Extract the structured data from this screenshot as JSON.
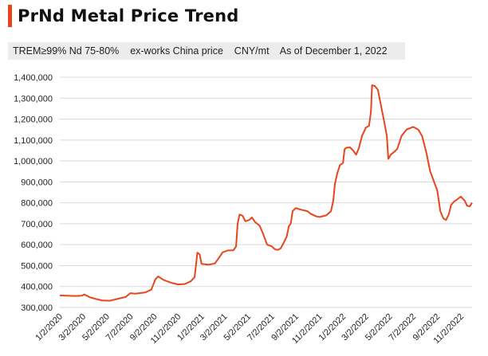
{
  "title": "PrNd Metal Price Trend",
  "subtitle": "TREM≥99% Nd 75-80%    ex-works China price    CNY/mt    As of December 1, 2022",
  "colors": {
    "accent": "#e8451e",
    "line": "#e8451e",
    "grid": "#d9d9d9"
  },
  "chart_data": {
    "type": "line",
    "title": "PrNd Metal Price Trend",
    "ylabel": "",
    "xlabel": "",
    "ylim": [
      300000,
      1400000
    ],
    "grid": true,
    "yticks": [
      300000,
      400000,
      500000,
      600000,
      700000,
      800000,
      900000,
      1000000,
      1100000,
      1200000,
      1300000,
      1400000
    ],
    "ytick_labels": [
      "300,000",
      "400,000",
      "500,000",
      "600,000",
      "700,000",
      "800,000",
      "900,000",
      "1,000,000",
      "1,100,000",
      "1,200,000",
      "1,300,000",
      "1,400,000"
    ],
    "xtick_labels": [
      "1/2/2020",
      "3/2/2020",
      "5/2/2020",
      "7/2/2020",
      "9/2/2020",
      "11/2/2020",
      "1/2/2021",
      "3/2/2021",
      "5/2/2021",
      "7/2/2021",
      "9/2/2021",
      "11/2/2021",
      "1/2/2022",
      "3/2/2022",
      "5/2/2022",
      "7/2/2022",
      "9/2/2022",
      "11/2/2022"
    ],
    "series": [
      {
        "values": [
          [
            "2020-01-02",
            357000
          ],
          [
            "2020-02-10",
            355000
          ],
          [
            "2020-02-28",
            356000
          ],
          [
            "2020-03-05",
            362000
          ],
          [
            "2020-03-20",
            348000
          ],
          [
            "2020-04-05",
            340000
          ],
          [
            "2020-04-20",
            333000
          ],
          [
            "2020-05-10",
            332000
          ],
          [
            "2020-06-01",
            342000
          ],
          [
            "2020-06-20",
            350000
          ],
          [
            "2020-07-02",
            368000
          ],
          [
            "2020-07-15",
            366000
          ],
          [
            "2020-08-10",
            372000
          ],
          [
            "2020-08-25",
            385000
          ],
          [
            "2020-09-05",
            435000
          ],
          [
            "2020-09-12",
            448000
          ],
          [
            "2020-09-25",
            432000
          ],
          [
            "2020-10-15",
            418000
          ],
          [
            "2020-11-02",
            410000
          ],
          [
            "2020-11-20",
            412000
          ],
          [
            "2020-12-05",
            425000
          ],
          [
            "2020-12-15",
            445000
          ],
          [
            "2020-12-22",
            562000
          ],
          [
            "2020-12-28",
            553000
          ],
          [
            "2021-01-02",
            508000
          ],
          [
            "2021-01-20",
            504000
          ],
          [
            "2021-02-05",
            510000
          ],
          [
            "2021-02-15",
            535000
          ],
          [
            "2021-02-25",
            563000
          ],
          [
            "2021-03-10",
            572000
          ],
          [
            "2021-03-25",
            573000
          ],
          [
            "2021-04-01",
            592000
          ],
          [
            "2021-04-05",
            700000
          ],
          [
            "2021-04-10",
            744000
          ],
          [
            "2021-04-18",
            738000
          ],
          [
            "2021-04-25",
            712000
          ],
          [
            "2021-05-05",
            718000
          ],
          [
            "2021-05-12",
            730000
          ],
          [
            "2021-05-20",
            708000
          ],
          [
            "2021-06-01",
            690000
          ],
          [
            "2021-06-10",
            650000
          ],
          [
            "2021-06-20",
            600000
          ],
          [
            "2021-07-02",
            592000
          ],
          [
            "2021-07-10",
            578000
          ],
          [
            "2021-07-18",
            575000
          ],
          [
            "2021-07-25",
            582000
          ],
          [
            "2021-08-02",
            610000
          ],
          [
            "2021-08-10",
            640000
          ],
          [
            "2021-08-15",
            688000
          ],
          [
            "2021-08-20",
            700000
          ],
          [
            "2021-08-25",
            760000
          ],
          [
            "2021-09-02",
            775000
          ],
          [
            "2021-09-10",
            770000
          ],
          [
            "2021-09-20",
            765000
          ],
          [
            "2021-10-02",
            760000
          ],
          [
            "2021-10-10",
            748000
          ],
          [
            "2021-10-25",
            735000
          ],
          [
            "2021-11-02",
            732000
          ],
          [
            "2021-11-20",
            740000
          ],
          [
            "2021-12-02",
            760000
          ],
          [
            "2021-12-08",
            810000
          ],
          [
            "2021-12-12",
            890000
          ],
          [
            "2021-12-18",
            940000
          ],
          [
            "2021-12-25",
            980000
          ],
          [
            "2022-01-02",
            990000
          ],
          [
            "2022-01-06",
            1055000
          ],
          [
            "2022-01-10",
            1063000
          ],
          [
            "2022-01-20",
            1065000
          ],
          [
            "2022-01-28",
            1050000
          ],
          [
            "2022-02-05",
            1030000
          ],
          [
            "2022-02-12",
            1062000
          ],
          [
            "2022-02-20",
            1120000
          ],
          [
            "2022-03-02",
            1160000
          ],
          [
            "2022-03-10",
            1168000
          ],
          [
            "2022-03-15",
            1235000
          ],
          [
            "2022-03-18",
            1362000
          ],
          [
            "2022-03-25",
            1358000
          ],
          [
            "2022-04-02",
            1340000
          ],
          [
            "2022-04-10",
            1265000
          ],
          [
            "2022-04-18",
            1190000
          ],
          [
            "2022-04-25",
            1120000
          ],
          [
            "2022-04-29",
            1010000
          ],
          [
            "2022-05-05",
            1030000
          ],
          [
            "2022-05-15",
            1045000
          ],
          [
            "2022-05-22",
            1058000
          ],
          [
            "2022-06-02",
            1120000
          ],
          [
            "2022-06-15",
            1150000
          ],
          [
            "2022-07-02",
            1163000
          ],
          [
            "2022-07-15",
            1150000
          ],
          [
            "2022-07-25",
            1120000
          ],
          [
            "2022-08-05",
            1040000
          ],
          [
            "2022-08-15",
            950000
          ],
          [
            "2022-08-25",
            900000
          ],
          [
            "2022-09-02",
            860000
          ],
          [
            "2022-09-10",
            760000
          ],
          [
            "2022-09-18",
            725000
          ],
          [
            "2022-09-25",
            718000
          ],
          [
            "2022-10-02",
            745000
          ],
          [
            "2022-10-08",
            790000
          ],
          [
            "2022-10-15",
            805000
          ],
          [
            "2022-10-25",
            818000
          ],
          [
            "2022-11-02",
            830000
          ],
          [
            "2022-11-12",
            810000
          ],
          [
            "2022-11-18",
            786000
          ],
          [
            "2022-11-25",
            783000
          ],
          [
            "2022-12-01",
            800000
          ]
        ]
      }
    ]
  }
}
